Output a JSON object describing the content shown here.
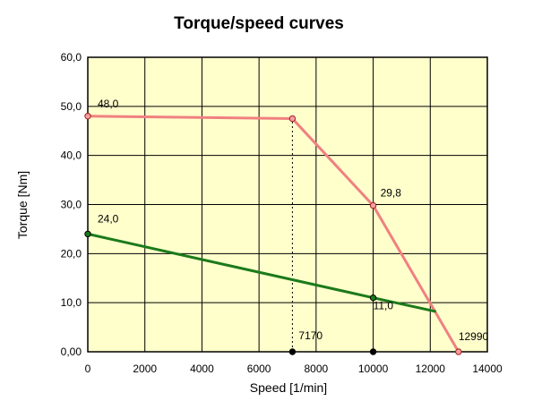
{
  "chart_data": {
    "type": "line",
    "title": "Torque/speed curves",
    "xlabel": "Speed [1/min]",
    "ylabel": "Torque [Nm]",
    "xlim": [
      0,
      14000
    ],
    "ylim": [
      0,
      60
    ],
    "x_ticks": [
      "0",
      "2000",
      "4000",
      "6000",
      "8000",
      "10000",
      "12000",
      "14000"
    ],
    "y_ticks": [
      "0,00",
      "10,0",
      "20,0",
      "30,0",
      "40,0",
      "50,0",
      "60,0"
    ],
    "grid": true,
    "legend": "none",
    "colors": {
      "plot_background": "#ffffcc",
      "series_peak": "#f08080",
      "series_continuous": "#1a7a1a",
      "grid": "#000000"
    },
    "series": [
      {
        "x": [
          0,
          7170,
          10000,
          12990
        ],
        "y": [
          48.0,
          47.5,
          29.8,
          0
        ]
      },
      {
        "x": [
          0,
          10000,
          12200
        ],
        "y": [
          24.0,
          11.0,
          8.2
        ]
      }
    ],
    "markers": [
      {
        "x": 0,
        "y": 48.0,
        "series": 0
      },
      {
        "x": 7170,
        "y": 47.5,
        "series": 0
      },
      {
        "x": 10000,
        "y": 29.8,
        "series": 0
      },
      {
        "x": 12990,
        "y": 0,
        "series": 0
      },
      {
        "x": 0,
        "y": 24.0,
        "series": 1
      },
      {
        "x": 10000,
        "y": 11.0,
        "series": 1
      },
      {
        "x": 7170,
        "y": 0,
        "series": 2
      },
      {
        "x": 10000,
        "y": 0,
        "series": 2
      }
    ],
    "reference_lines": [
      {
        "x": 7170,
        "y_from": 0,
        "y_to": 47.5,
        "style": "dotted"
      }
    ],
    "annotations": [
      {
        "text": "48,0",
        "x": 0,
        "y": 48.0
      },
      {
        "text": "29,8",
        "x": 10000,
        "y": 29.8
      },
      {
        "text": "24,0",
        "x": 0,
        "y": 24.0
      },
      {
        "text": "11,0",
        "x": 10000,
        "y": 11.0
      },
      {
        "text": "7170",
        "x": 7170,
        "y": 0
      },
      {
        "text": "12990",
        "x": 12990,
        "y": 0
      }
    ]
  }
}
